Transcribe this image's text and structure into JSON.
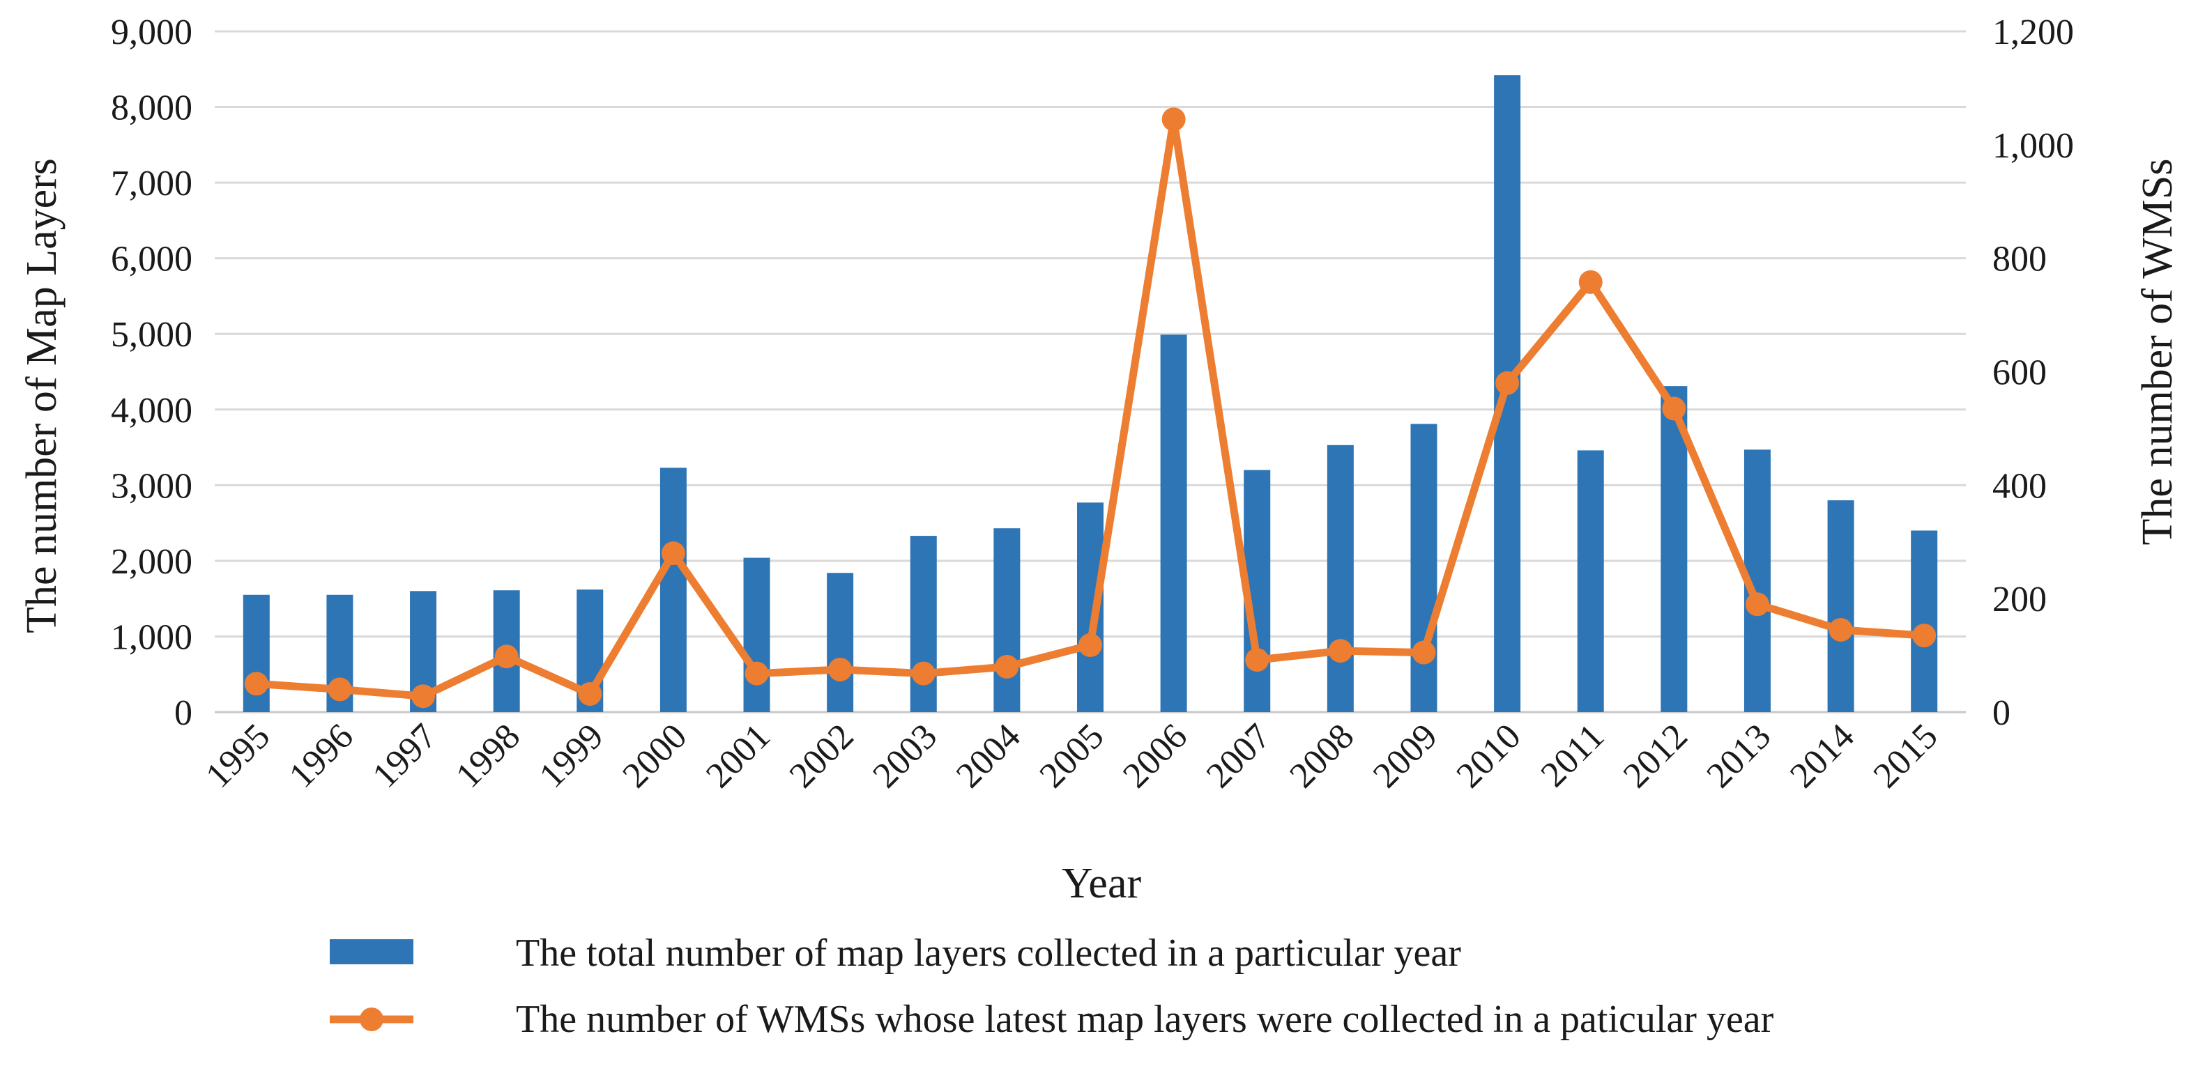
{
  "chart_data": {
    "type": "bar",
    "xlabel": "Year",
    "ylabel_left": "The number of Map Layers",
    "ylabel_right": "The number of WMSs",
    "categories": [
      "1995",
      "1996",
      "1997",
      "1998",
      "1999",
      "2000",
      "2001",
      "2002",
      "2003",
      "2004",
      "2005",
      "2006",
      "2007",
      "2008",
      "2009",
      "2010",
      "2011",
      "2012",
      "2013",
      "2014",
      "2015"
    ],
    "ylim_left": [
      0,
      9000
    ],
    "ylim_right": [
      0,
      1200
    ],
    "yticks_left": [
      "0",
      "1,000",
      "2,000",
      "3,000",
      "4,000",
      "5,000",
      "6,000",
      "7,000",
      "8,000",
      "9,000"
    ],
    "yticks_right": [
      "0",
      "200",
      "400",
      "600",
      "800",
      "1,000",
      "1,200"
    ],
    "grid": true,
    "legend_position": "bottom",
    "series": [
      {
        "name": "The total number of map layers collected in a particular year",
        "type": "bar",
        "axis": "left",
        "color": "#2e75b6",
        "values": [
          1550,
          1550,
          1600,
          1610,
          1620,
          3230,
          2040,
          1840,
          2330,
          2430,
          2770,
          4990,
          3200,
          3530,
          3810,
          8420,
          3460,
          4310,
          3470,
          2800,
          2400
        ]
      },
      {
        "name": "The number of WMSs whose latest map layers were collected in a paticular year",
        "type": "line",
        "axis": "right",
        "color": "#ed7d31",
        "values": [
          50,
          40,
          28,
          98,
          32,
          280,
          68,
          75,
          68,
          80,
          118,
          1045,
          92,
          108,
          105,
          580,
          758,
          535,
          190,
          145,
          135
        ]
      }
    ]
  }
}
